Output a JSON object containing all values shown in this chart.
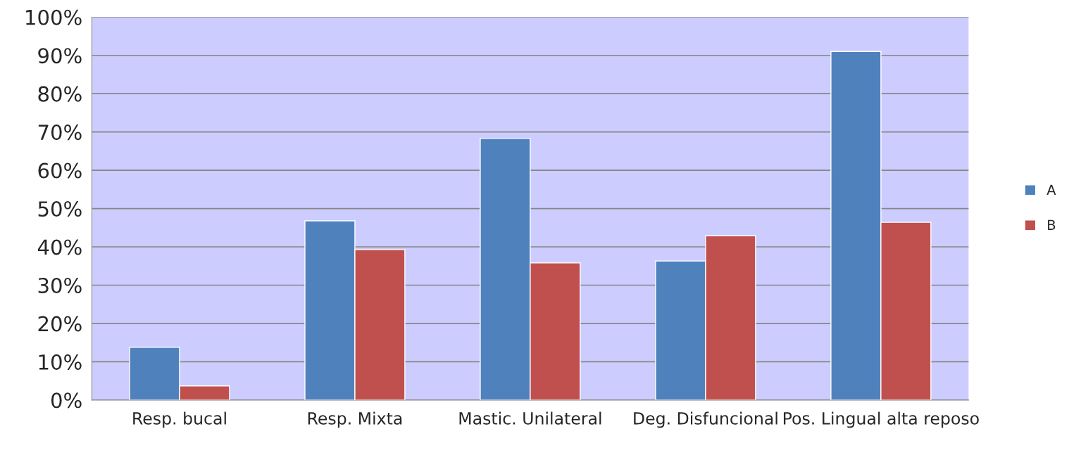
{
  "chart_data": {
    "type": "bar",
    "categories": [
      "Resp. bucal",
      "Resp. Mixta",
      "Mastic. Unilateral",
      "Deg. Disfuncional",
      "Pos. Lingual alta reposo"
    ],
    "series": [
      {
        "name": "A",
        "color": "#4f81bd",
        "values": [
          13.8,
          46.8,
          68.3,
          36.3,
          91.0
        ]
      },
      {
        "name": "B",
        "color": "#c0504d",
        "values": [
          3.7,
          39.3,
          35.8,
          42.9,
          46.4
        ]
      }
    ],
    "ylim": [
      0,
      100
    ],
    "yticks": [
      {
        "value": 0,
        "label": "0%"
      },
      {
        "value": 10,
        "label": "10%"
      },
      {
        "value": 20,
        "label": "20%"
      },
      {
        "value": 30,
        "label": "30%"
      },
      {
        "value": 40,
        "label": "40%"
      },
      {
        "value": 50,
        "label": "50%"
      },
      {
        "value": 60,
        "label": "60%"
      },
      {
        "value": 70,
        "label": "70%"
      },
      {
        "value": 80,
        "label": "80%"
      },
      {
        "value": 90,
        "label": "90%"
      },
      {
        "value": 100,
        "label": "100%"
      }
    ],
    "grid": "y",
    "legend": "right"
  }
}
